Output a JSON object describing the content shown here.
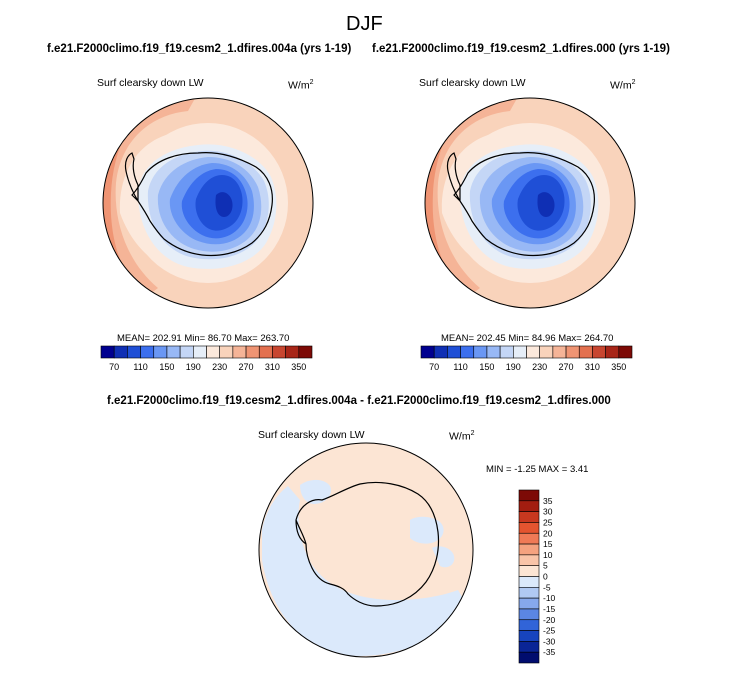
{
  "page": {
    "title": "DJF",
    "colors": {
      "coast": "#000000",
      "frame": "#000000"
    }
  },
  "panels": [
    {
      "case_title": "f.e21.F2000climo.f19_f19.cesm2_1.dfires.004a (yrs 1-19)",
      "var_label": "Surf clearsky down LW",
      "units_base": "W/m",
      "units_exp": "2",
      "stats": "MEAN= 202.91  Min=  86.70  Max= 263.70"
    },
    {
      "case_title": "f.e21.F2000climo.f19_f19.cesm2_1.dfires.000 (yrs 1-19)",
      "var_label": "Surf clearsky down LW",
      "units_base": "W/m",
      "units_exp": "2",
      "stats": "MEAN= 202.45  Min=  84.96  Max= 264.70"
    },
    {
      "case_title": "f.e21.F2000climo.f19_f19.cesm2_1.dfires.004a - f.e21.F2000climo.f19_f19.cesm2_1.dfires.000",
      "var_label": "Surf clearsky down LW",
      "units_base": "W/m",
      "units_exp": "2",
      "stats": "MIN =  -1.25 MAX =   3.41"
    }
  ],
  "chart_data": [
    {
      "type": "heatmap",
      "projection": "south polar stereographic",
      "title": "Surf clearsky down LW",
      "colorbar": {
        "orientation": "horizontal",
        "tick_labels": [
          "70",
          "110",
          "150",
          "190",
          "230",
          "270",
          "310",
          "350"
        ],
        "colors": [
          "#00008f",
          "#0f2fb4",
          "#1f4fd6",
          "#3c6fee",
          "#6a97f4",
          "#98b8f5",
          "#c4d6f6",
          "#e6eef8",
          "#fce9dc",
          "#f9d3bb",
          "#f5b497",
          "#ef9473",
          "#e3704f",
          "#c84630",
          "#a82618",
          "#7d0a06"
        ]
      },
      "mean": 202.91,
      "min": 86.7,
      "max": 263.7
    },
    {
      "type": "heatmap",
      "projection": "south polar stereographic",
      "title": "Surf clearsky down LW",
      "colorbar": {
        "orientation": "horizontal",
        "tick_labels": [
          "70",
          "110",
          "150",
          "190",
          "230",
          "270",
          "310",
          "350"
        ],
        "colors": [
          "#00008f",
          "#0f2fb4",
          "#1f4fd6",
          "#3c6fee",
          "#6a97f4",
          "#98b8f5",
          "#c4d6f6",
          "#e6eef8",
          "#fce9dc",
          "#f9d3bb",
          "#f5b497",
          "#ef9473",
          "#e3704f",
          "#c84630",
          "#a82618",
          "#7d0a06"
        ]
      },
      "mean": 202.45,
      "min": 84.96,
      "max": 264.7
    },
    {
      "type": "heatmap",
      "projection": "south polar stereographic",
      "title": "Surf clearsky down LW",
      "colorbar": {
        "orientation": "vertical",
        "tick_labels": [
          "35",
          "30",
          "25",
          "20",
          "15",
          "10",
          "5",
          "0",
          "-5",
          "-10",
          "-15",
          "-20",
          "-25",
          "-30",
          "-35"
        ],
        "colors": [
          "#7d0a06",
          "#a31d10",
          "#c8381f",
          "#e4542f",
          "#f07a56",
          "#f5a27f",
          "#f9c4a8",
          "#fce5d4",
          "#dbe9fb",
          "#b0c9f3",
          "#86a8ec",
          "#5b86e3",
          "#3164d8",
          "#1744be",
          "#0a2596",
          "#010d6e"
        ]
      },
      "min": -1.25,
      "max": 3.41
    }
  ]
}
